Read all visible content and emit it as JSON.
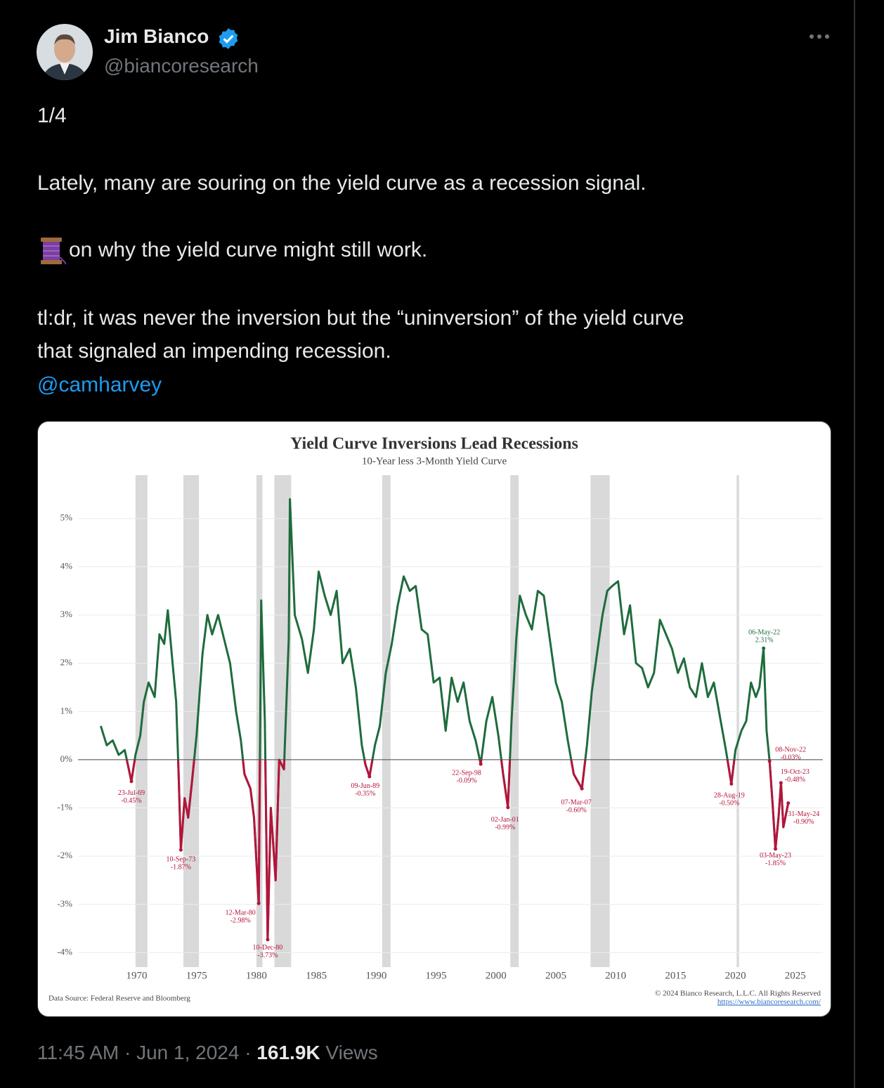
{
  "author": {
    "name": "Jim Bianco",
    "handle": "@biancoresearch"
  },
  "post": {
    "lines": [
      "1/4",
      "Lately, many are souring on the yield curve as a recession signal.",
      "on why the yield curve might still work.",
      "tl:dr, it was never the inversion but the “uninversion” of the yield curve",
      "that signaled an impending recession."
    ],
    "mention": "@camharvey"
  },
  "chart_data": {
    "type": "line",
    "title": "Yield Curve Inversions Lead Recessions",
    "subtitle": "10-Year less 3-Month Yield Curve",
    "source": "Data Source: Federal Reserve and Bloomberg",
    "copyright": "© 2024 Bianco Research, L.L.C. All Rights Reserved",
    "url": "https://www.biancoresearch.com/",
    "color": "#1f6b3d",
    "negative_color": "#b5143c",
    "shade_color": "#d9d9d9",
    "xlim": [
      1965.1,
      2027.3
    ],
    "ylim": [
      -4.3,
      5.9
    ],
    "xticks": [
      1970,
      1975,
      1980,
      1985,
      1990,
      1995,
      2000,
      2005,
      2010,
      2015,
      2020,
      2025
    ],
    "yticks": [
      {
        "value": -4,
        "label": "-4%"
      },
      {
        "value": -3,
        "label": "-3%"
      },
      {
        "value": -2,
        "label": "-2%"
      },
      {
        "value": -1,
        "label": "-1%"
      },
      {
        "value": 0,
        "label": "0%"
      },
      {
        "value": 1,
        "label": "1%"
      },
      {
        "value": 2,
        "label": "2%"
      },
      {
        "value": 3,
        "label": "3%"
      },
      {
        "value": 4,
        "label": "4%"
      },
      {
        "value": 5,
        "label": "5%"
      }
    ],
    "grid": true,
    "recessions": [
      [
        1969.9,
        1970.9
      ],
      [
        1973.9,
        1975.2
      ],
      [
        1980.0,
        1980.5
      ],
      [
        1981.5,
        1982.9
      ],
      [
        1990.5,
        1991.2
      ],
      [
        2001.2,
        2001.9
      ],
      [
        2007.9,
        2009.5
      ],
      [
        2020.1,
        2020.3
      ]
    ],
    "x": [
      1967.0,
      1967.5,
      1968.0,
      1968.5,
      1969.0,
      1969.56,
      1969.9,
      1970.3,
      1970.6,
      1971.0,
      1971.5,
      1971.9,
      1972.3,
      1972.6,
      1973.0,
      1973.3,
      1973.5,
      1973.69,
      1974.0,
      1974.3,
      1974.6,
      1975.0,
      1975.5,
      1975.9,
      1976.3,
      1976.8,
      1977.3,
      1977.8,
      1978.3,
      1978.7,
      1979.0,
      1979.5,
      1979.8,
      1980.19,
      1980.4,
      1980.7,
      1980.94,
      1981.2,
      1981.6,
      1981.9,
      1982.3,
      1982.7,
      1982.8,
      1983.2,
      1983.8,
      1984.3,
      1984.8,
      1985.2,
      1985.7,
      1986.2,
      1986.7,
      1987.2,
      1987.8,
      1988.3,
      1988.8,
      1989.1,
      1989.44,
      1989.9,
      1990.3,
      1990.8,
      1991.3,
      1991.8,
      1992.3,
      1992.8,
      1993.3,
      1993.8,
      1994.3,
      1994.8,
      1995.3,
      1995.8,
      1996.3,
      1996.8,
      1997.3,
      1997.8,
      1998.3,
      1998.73,
      1999.2,
      1999.7,
      2000.2,
      2000.6,
      2001.0,
      2001.3,
      2001.7,
      2002.0,
      2002.5,
      2003.0,
      2003.5,
      2004.0,
      2004.5,
      2005.0,
      2005.5,
      2006.0,
      2006.5,
      2007.18,
      2007.6,
      2008.0,
      2008.5,
      2008.9,
      2009.3,
      2009.7,
      2010.2,
      2010.7,
      2011.2,
      2011.7,
      2012.2,
      2012.7,
      2013.2,
      2013.7,
      2014.2,
      2014.7,
      2015.2,
      2015.7,
      2016.2,
      2016.7,
      2017.2,
      2017.7,
      2018.2,
      2018.7,
      2019.2,
      2019.66,
      2020.0,
      2020.5,
      2020.9,
      2021.3,
      2021.7,
      2022.0,
      2022.35,
      2022.6,
      2022.85,
      2023.1,
      2023.34,
      2023.6,
      2023.8,
      2024.0,
      2024.41
    ],
    "values": [
      0.7,
      0.3,
      0.4,
      0.1,
      0.2,
      -0.45,
      0.1,
      0.5,
      1.2,
      1.6,
      1.3,
      2.6,
      2.4,
      3.1,
      2.0,
      1.2,
      -0.3,
      -1.87,
      -0.8,
      -1.2,
      -0.5,
      0.5,
      2.2,
      3.0,
      2.6,
      3.0,
      2.5,
      2.0,
      1.0,
      0.4,
      -0.3,
      -0.6,
      -1.2,
      -2.98,
      3.3,
      0.8,
      -3.73,
      -1.0,
      -2.5,
      0.0,
      -0.2,
      2.5,
      5.4,
      3.0,
      2.5,
      1.8,
      2.7,
      3.9,
      3.4,
      3.0,
      3.5,
      2.0,
      2.3,
      1.5,
      0.3,
      -0.1,
      -0.35,
      0.3,
      0.7,
      1.8,
      2.4,
      3.2,
      3.8,
      3.5,
      3.6,
      2.7,
      2.6,
      1.6,
      1.7,
      0.6,
      1.7,
      1.2,
      1.6,
      0.8,
      0.4,
      -0.09,
      0.8,
      1.3,
      0.5,
      -0.3,
      -0.99,
      0.8,
      2.5,
      3.4,
      3.0,
      2.7,
      3.5,
      3.4,
      2.5,
      1.6,
      1.2,
      0.4,
      -0.3,
      -0.6,
      0.3,
      1.4,
      2.3,
      3.0,
      3.5,
      3.6,
      3.7,
      2.6,
      3.2,
      2.0,
      1.9,
      1.5,
      1.8,
      2.9,
      2.6,
      2.3,
      1.8,
      2.1,
      1.5,
      1.3,
      2.0,
      1.3,
      1.6,
      0.9,
      0.2,
      -0.5,
      0.2,
      0.6,
      0.8,
      1.6,
      1.3,
      1.5,
      2.31,
      0.6,
      -0.03,
      -0.9,
      -1.85,
      -1.2,
      -0.48,
      -1.4,
      -0.9
    ],
    "annotations": [
      {
        "x": 1969.56,
        "value": -0.45,
        "date_label": "23-Jul-69",
        "value_label": "-0.45%"
      },
      {
        "x": 1973.69,
        "value": -1.87,
        "date_label": "10-Sep-73",
        "value_label": "-1.87%"
      },
      {
        "x": 1980.19,
        "value": -2.98,
        "date_label": "12-Mar-80",
        "value_label": "-2.98%"
      },
      {
        "x": 1980.94,
        "value": -3.73,
        "date_label": "10-Dec-80",
        "value_label": "-3.73%"
      },
      {
        "x": 1989.44,
        "value": -0.35,
        "date_label": "09-Jun-89",
        "value_label": "-0.35%"
      },
      {
        "x": 1998.73,
        "value": -0.09,
        "date_label": "22-Sep-98",
        "value_label": "-0.09%"
      },
      {
        "x": 2001.0,
        "value": -0.99,
        "date_label": "02-Jan-01",
        "value_label": "-0.99%"
      },
      {
        "x": 2007.18,
        "value": -0.6,
        "date_label": "07-Mar-07",
        "value_label": "-0.60%"
      },
      {
        "x": 2019.66,
        "value": -0.5,
        "date_label": "28-Aug-19",
        "value_label": "-0.50%"
      },
      {
        "x": 2022.35,
        "value": 2.31,
        "date_label": "06-May-22",
        "value_label": "2.31%"
      },
      {
        "x": 2022.85,
        "value": -0.03,
        "date_label": "08-Nov-22",
        "value_label": "-0.03%"
      },
      {
        "x": 2023.34,
        "value": -1.85,
        "date_label": "03-May-23",
        "value_label": "-1.85%"
      },
      {
        "x": 2023.8,
        "value": -0.48,
        "date_label": "19-Oct-23",
        "value_label": "-0.48%"
      },
      {
        "x": 2024.41,
        "value": -0.9,
        "date_label": "31-May-24",
        "value_label": "-0.90%"
      }
    ]
  },
  "footer": {
    "time": "11:45 AM · Jun 1, 2024 · ",
    "views_count": "161.9K",
    "views_label": " Views"
  }
}
